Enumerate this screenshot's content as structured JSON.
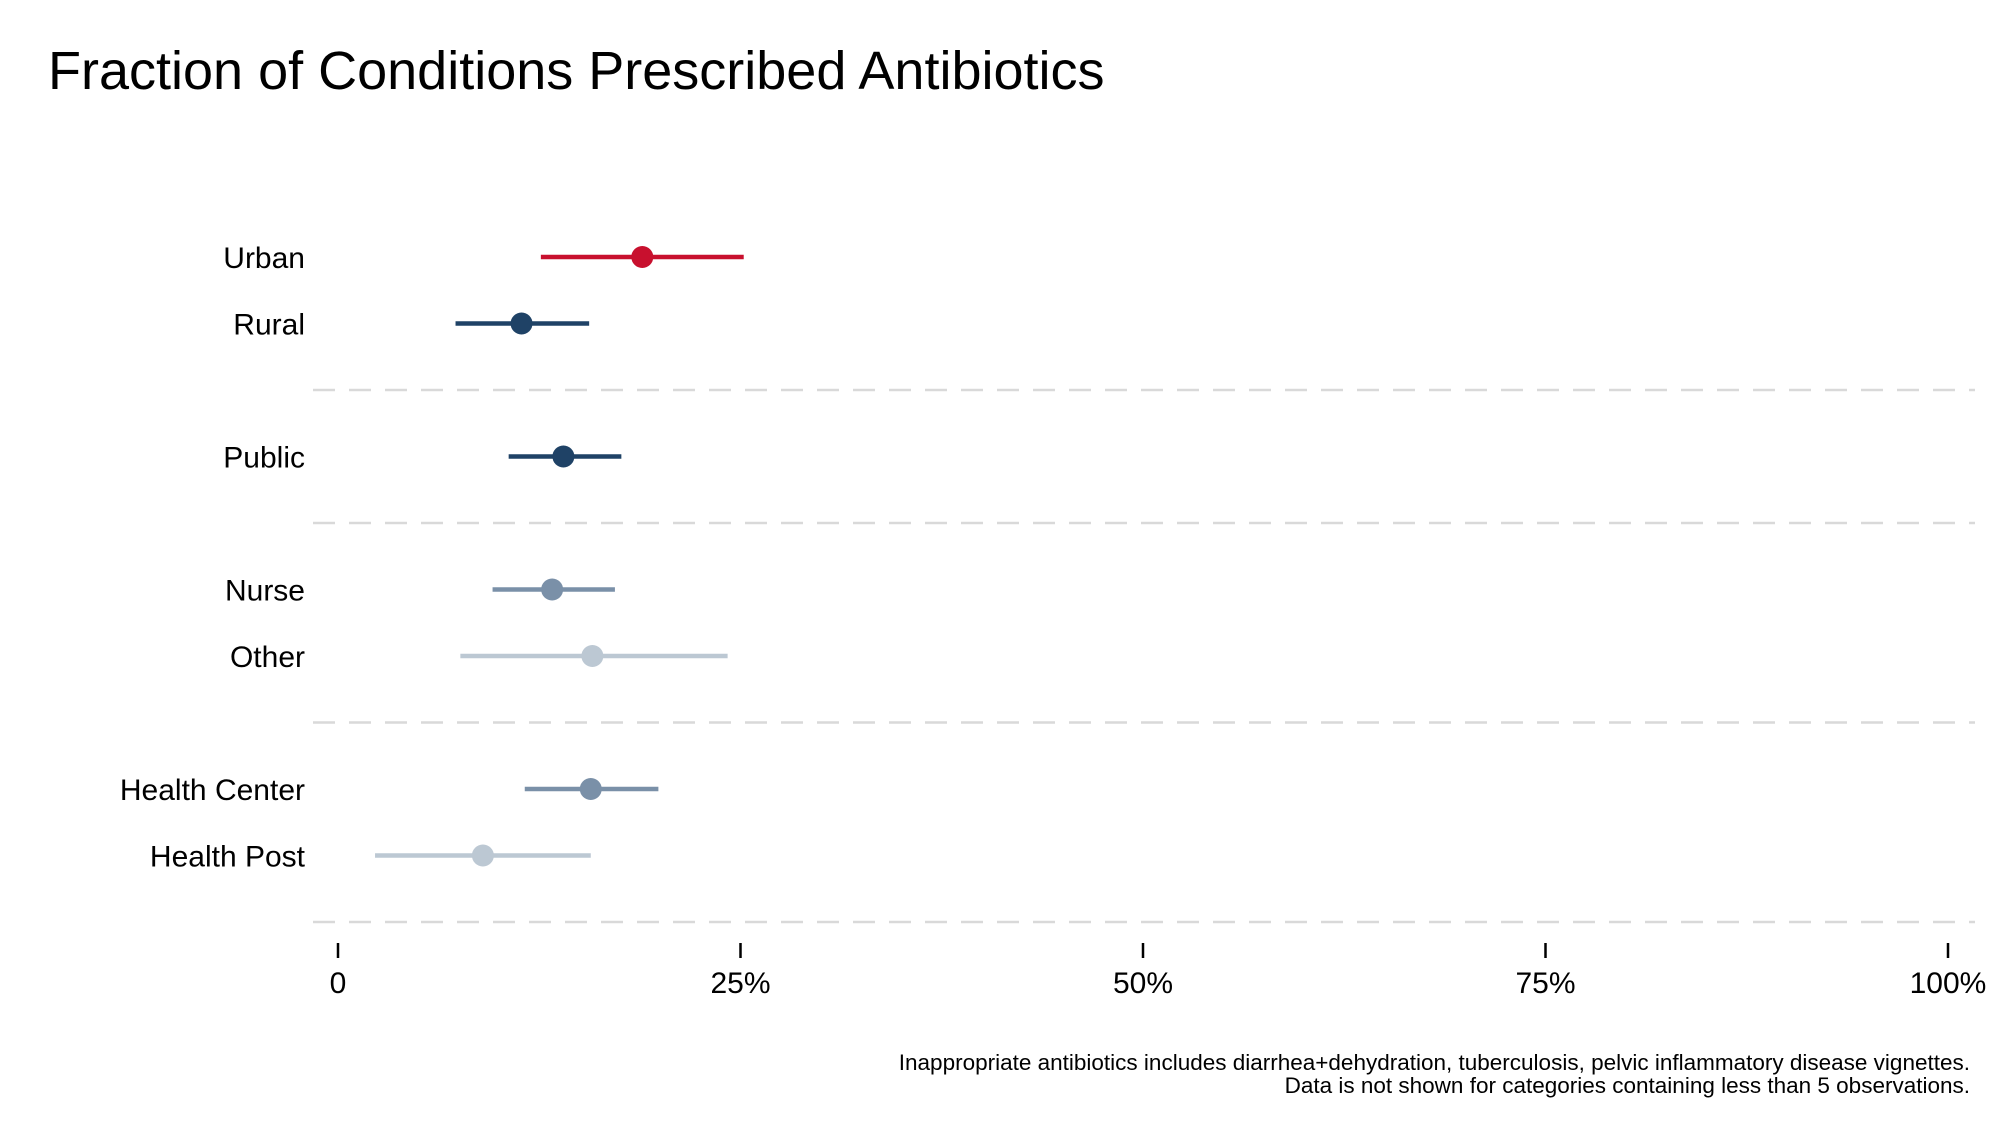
{
  "chart_data": {
    "type": "dot-interval",
    "title": "Fraction of Conditions Prescribed Antibiotics",
    "xlim": [
      0,
      100
    ],
    "x_ticks": [
      {
        "value": 0,
        "label": "0"
      },
      {
        "value": 25,
        "label": "25%"
      },
      {
        "value": 50,
        "label": "50%"
      },
      {
        "value": 75,
        "label": "75%"
      },
      {
        "value": 100,
        "label": "100%"
      }
    ],
    "grid": "dashed separators between groups",
    "groups": [
      {
        "rows": [
          {
            "label": "Urban",
            "estimate": 18.9,
            "lower": 12.6,
            "upper": 25.2,
            "color": "#C8102E"
          },
          {
            "label": "Rural",
            "estimate": 11.4,
            "lower": 7.3,
            "upper": 15.6,
            "color": "#1F4266"
          }
        ]
      },
      {
        "rows": [
          {
            "label": "Public",
            "estimate": 14.0,
            "lower": 10.6,
            "upper": 17.6,
            "color": "#1F4266"
          }
        ]
      },
      {
        "rows": [
          {
            "label": "Nurse",
            "estimate": 13.3,
            "lower": 9.6,
            "upper": 17.2,
            "color": "#7A90A8"
          },
          {
            "label": "Other",
            "estimate": 15.8,
            "lower": 7.6,
            "upper": 24.2,
            "color": "#BCC8D3"
          }
        ]
      },
      {
        "rows": [
          {
            "label": "Health Center",
            "estimate": 15.7,
            "lower": 11.6,
            "upper": 19.9,
            "color": "#7A90A8"
          },
          {
            "label": "Health Post",
            "estimate": 9.0,
            "lower": 2.3,
            "upper": 15.7,
            "color": "#BCC8D3"
          }
        ]
      }
    ]
  },
  "footnotes": {
    "line1": "Inappropriate antibiotics includes diarrhea+dehydration, tuberculosis, pelvic inflammatory disease vignettes.",
    "line2": "Data is not shown for categories containing less than 5 observations."
  }
}
